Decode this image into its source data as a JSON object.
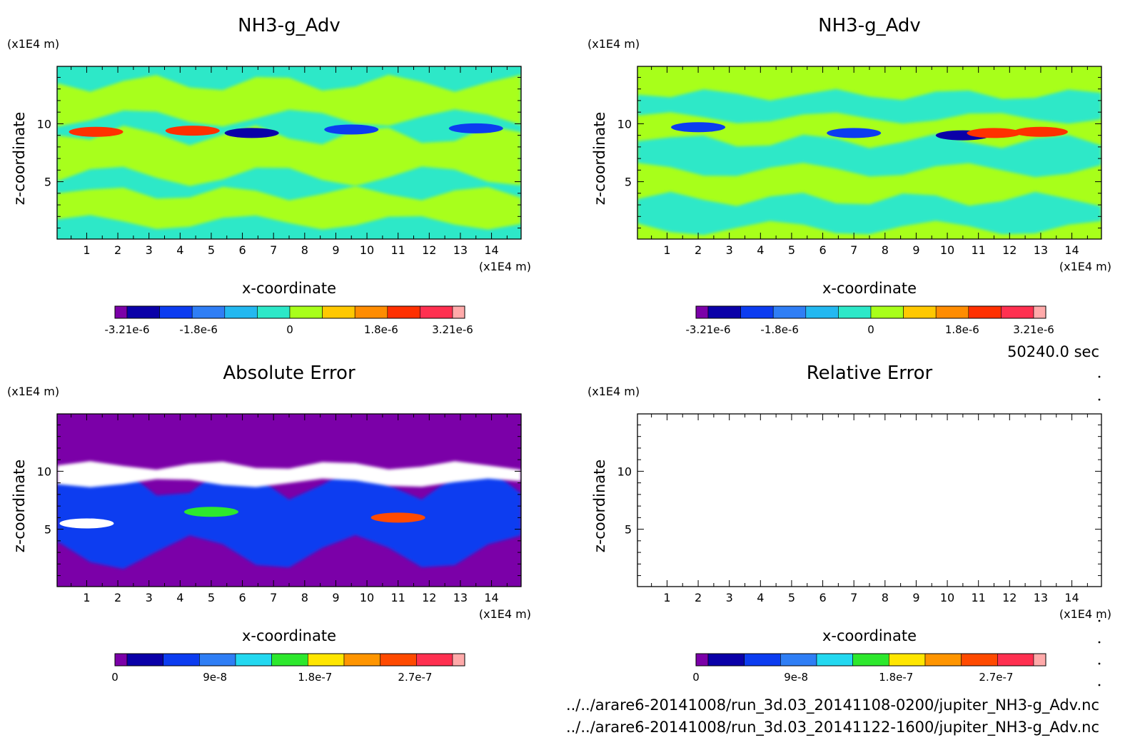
{
  "chart_data": [
    {
      "type": "heatmap",
      "title": "NH3-g_Adv",
      "xlabel": "x-coordinate",
      "ylabel": "z-coordinate",
      "x_unit": "(x1E4 m)",
      "y_unit": "(x1E4 m)",
      "xlim": [
        0.05,
        14.95
      ],
      "ylim": [
        0.05,
        14.95
      ],
      "x_ticks": [
        "1",
        "2",
        "3",
        "4",
        "5",
        "6",
        "7",
        "8",
        "9",
        "10",
        "11",
        "12",
        "13",
        "14"
      ],
      "y_ticks": [
        "5",
        "10"
      ],
      "colorbar_ticks": [
        "-3.21e-6",
        "-1.8e-6",
        "0",
        "1.8e-6",
        "3.21e-6"
      ],
      "colorbar_colors": [
        "#7b00a8",
        "#0a00a8",
        "#0c3cf0",
        "#2f7ef5",
        "#23b8f0",
        "#2de8c8",
        "#a8ff1a",
        "#ffc800",
        "#ff8c00",
        "#ff3000",
        "#ff3050",
        "#ffaaaa"
      ],
      "background_color": "#2de8c8",
      "features": [
        {
          "kind": "band",
          "color": "#a8ff1a",
          "x": [
            0.05,
            14.95
          ],
          "z": [
            10.5,
            13.5
          ]
        },
        {
          "kind": "band",
          "color": "#a8ff1a",
          "x": [
            0.05,
            14.95
          ],
          "z": [
            5.5,
            9.0
          ]
        },
        {
          "kind": "band",
          "color": "#a8ff1a",
          "x": [
            0.05,
            14.95
          ],
          "z": [
            1.5,
            4.0
          ]
        },
        {
          "kind": "blob",
          "color": "#ff3000",
          "x": 4.4,
          "z": 9.4,
          "value": 3.21e-06
        },
        {
          "kind": "blob",
          "color": "#ff3000",
          "x": 1.3,
          "z": 9.3,
          "value": 3.21e-06
        },
        {
          "kind": "blob",
          "color": "#0a00a8",
          "x": 6.3,
          "z": 9.2,
          "value": -3.21e-06
        },
        {
          "kind": "blob",
          "color": "#0c3cf0",
          "x": 9.5,
          "z": 9.5,
          "value": -1.8e-06
        },
        {
          "kind": "blob",
          "color": "#0c3cf0",
          "x": 13.5,
          "z": 9.6,
          "value": -1.8e-06
        }
      ]
    },
    {
      "type": "heatmap",
      "title": "NH3-g_Adv",
      "xlabel": "x-coordinate",
      "ylabel": "z-coordinate",
      "x_unit": "(x1E4 m)",
      "y_unit": "(x1E4 m)",
      "xlim": [
        0.05,
        14.95
      ],
      "ylim": [
        0.05,
        14.95
      ],
      "x_ticks": [
        "1",
        "2",
        "3",
        "4",
        "5",
        "6",
        "7",
        "8",
        "9",
        "10",
        "11",
        "12",
        "13",
        "14"
      ],
      "y_ticks": [
        "5",
        "10"
      ],
      "colorbar_ticks": [
        "-3.21e-6",
        "-1.8e-6",
        "0",
        "1.8e-6",
        "3.21e-6"
      ],
      "colorbar_colors": [
        "#7b00a8",
        "#0a00a8",
        "#0c3cf0",
        "#2f7ef5",
        "#23b8f0",
        "#2de8c8",
        "#a8ff1a",
        "#ffc800",
        "#ff8c00",
        "#ff3000",
        "#ff3050",
        "#ffaaaa"
      ],
      "background_color": "#a8ff1a",
      "features": [
        {
          "kind": "band",
          "color": "#2de8c8",
          "x": [
            0.05,
            14.95
          ],
          "z": [
            10.5,
            12.5
          ]
        },
        {
          "kind": "band",
          "color": "#2de8c8",
          "x": [
            0.05,
            14.95
          ],
          "z": [
            6.0,
            8.5
          ]
        },
        {
          "kind": "band",
          "color": "#2de8c8",
          "x": [
            0.05,
            14.95
          ],
          "z": [
            1.0,
            3.5
          ]
        },
        {
          "kind": "blob",
          "color": "#0c3cf0",
          "x": 2.0,
          "z": 9.7,
          "value": -1.8e-06
        },
        {
          "kind": "blob",
          "color": "#0c3cf0",
          "x": 7.0,
          "z": 9.2,
          "value": -1.8e-06
        },
        {
          "kind": "blob",
          "color": "#0a00a8",
          "x": 10.5,
          "z": 9.0,
          "value": -3.21e-06
        },
        {
          "kind": "blob",
          "color": "#ff3000",
          "x": 11.5,
          "z": 9.2,
          "value": 3.21e-06
        },
        {
          "kind": "blob",
          "color": "#ff3000",
          "x": 13.0,
          "z": 9.3,
          "value": 3.21e-06
        }
      ]
    },
    {
      "type": "heatmap",
      "title": "Absolute Error",
      "xlabel": "x-coordinate",
      "ylabel": "z-coordinate",
      "x_unit": "(x1E4 m)",
      "y_unit": "(x1E4 m)",
      "xlim": [
        0.05,
        14.95
      ],
      "ylim": [
        0.05,
        14.95
      ],
      "x_ticks": [
        "1",
        "2",
        "3",
        "4",
        "5",
        "6",
        "7",
        "8",
        "9",
        "10",
        "11",
        "12",
        "13",
        "14"
      ],
      "y_ticks": [
        "5",
        "10"
      ],
      "colorbar_ticks": [
        "0",
        "9e-8",
        "1.8e-7",
        "2.7e-7"
      ],
      "colorbar_colors": [
        "#7b00a8",
        "#0a00a8",
        "#0c3cf0",
        "#2f7ef5",
        "#23d8f0",
        "#2de82d",
        "#ffe600",
        "#ff9500",
        "#ff4a00",
        "#ff3050",
        "#ffaaaa"
      ],
      "background_color": "#7b00a8",
      "features": [
        {
          "kind": "band",
          "color": "#0c3cf0",
          "x": [
            0.05,
            14.95
          ],
          "z": [
            3.0,
            9.0
          ]
        },
        {
          "kind": "band",
          "color": "#ffffff",
          "x": [
            0.05,
            14.95
          ],
          "z": [
            9.0,
            10.5
          ]
        },
        {
          "kind": "blob",
          "color": "#ffffff",
          "x": 1.0,
          "z": 5.5,
          "value": 3e-07
        },
        {
          "kind": "blob",
          "color": "#2de82d",
          "x": 5.0,
          "z": 6.5,
          "value": 1.5e-07
        },
        {
          "kind": "blob",
          "color": "#ff4a00",
          "x": 11.0,
          "z": 6.0,
          "value": 2.5e-07
        }
      ]
    },
    {
      "type": "heatmap",
      "title": "Relative Error",
      "xlabel": "x-coordinate",
      "ylabel": "z-coordinate",
      "x_unit": "(x1E4 m)",
      "y_unit": "(x1E4 m)",
      "xlim": [
        0.05,
        14.95
      ],
      "ylim": [
        0.05,
        14.95
      ],
      "x_ticks": [
        "1",
        "2",
        "3",
        "4",
        "5",
        "6",
        "7",
        "8",
        "9",
        "10",
        "11",
        "12",
        "13",
        "14"
      ],
      "y_ticks": [
        "5",
        "10"
      ],
      "colorbar_ticks": [
        "0",
        "9e-8",
        "1.8e-7",
        "2.7e-7"
      ],
      "colorbar_colors": [
        "#7b00a8",
        "#0a00a8",
        "#0c3cf0",
        "#2f7ef5",
        "#23d8f0",
        "#2de82d",
        "#ffe600",
        "#ff9500",
        "#ff4a00",
        "#ff3050",
        "#ffaaaa"
      ],
      "background_color": "#ffffff",
      "features": []
    }
  ],
  "time_label": "50240.0 sec",
  "footer": {
    "file1": "../../arare6-20141008/run_3d.03_20141108-0200/jupiter_NH3-g_Adv.nc",
    "file2": "../../arare6-20141008/run_3d.03_20141122-1600/jupiter_NH3-g_Adv.nc"
  }
}
